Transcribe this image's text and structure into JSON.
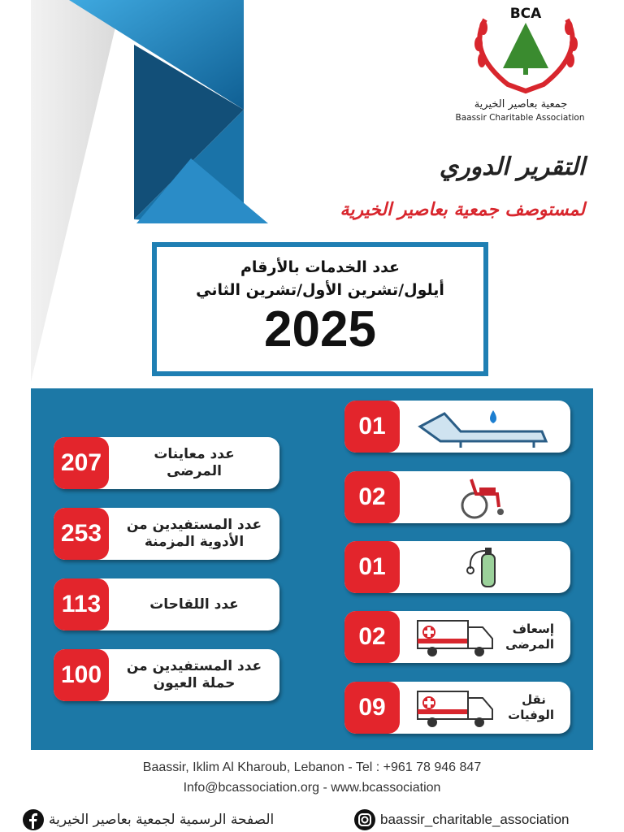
{
  "logo": {
    "acronym": "BCA",
    "name_ar": "جمعية بعاصير الخيرية",
    "name_en": "Baassir Charitable Association"
  },
  "header": {
    "title": "التقرير الدوري",
    "subtitle": "لمستوصف جمعية بعاصير الخيرية"
  },
  "period_box": {
    "line1": "عدد الخدمات بالأرقام",
    "line2": "أيلول/تشرين الأول/تشرين الثاني",
    "year": "2025"
  },
  "colors": {
    "blue": "#1c78a6",
    "red": "#e3252c",
    "box_border": "#1f7fb3"
  },
  "stats_left": [
    {
      "value": "207",
      "label": "عدد معاينات المرضى"
    },
    {
      "value": "253",
      "label": "عدد المستفيدين من الأدوية المزمنة"
    },
    {
      "value": "113",
      "label": "عدد اللقاحات"
    },
    {
      "value": "100",
      "label": "عدد المستفيدين من حملة العيون"
    }
  ],
  "stats_right": [
    {
      "value": "01",
      "icon": "medical-bed-icon"
    },
    {
      "value": "02",
      "icon": "wheelchair-icon"
    },
    {
      "value": "01",
      "icon": "oxygen-tank-icon"
    },
    {
      "value": "02",
      "icon": "ambulance-icon",
      "label": "إسعاف المرضى"
    },
    {
      "value": "09",
      "icon": "ambulance-icon",
      "label": "نقل الوفيات"
    }
  ],
  "footer": {
    "address": "Baassir, Iklim Al Kharoub, Lebanon - Tel : +961 78 946 847",
    "contact": "Info@bcassociation.org - www.bcassociation",
    "facebook": "الصفحة الرسمية لجمعية بعاصير الخيرية",
    "instagram": "baassir_charitable_association"
  }
}
